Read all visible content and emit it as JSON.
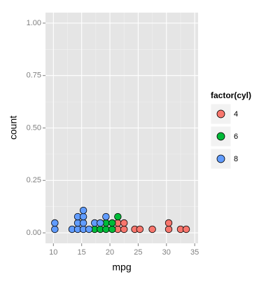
{
  "chart_data": {
    "type": "dotplot",
    "x_label": "mpg",
    "y_label": "count",
    "xlim": [
      8.6,
      35.6
    ],
    "ylim": [
      -0.05,
      1.05
    ],
    "xticks": [
      10,
      15,
      20,
      25,
      30,
      35
    ],
    "yticks": [
      {
        "value": 0,
        "label": "0.00"
      },
      {
        "value": 0.25,
        "label": "0.25"
      },
      {
        "value": 0.5,
        "label": "0.50"
      },
      {
        "value": 0.75,
        "label": "0.75"
      },
      {
        "value": 1,
        "label": "1.00"
      }
    ],
    "grid": true,
    "legend_title": "factor(cyl)",
    "legend_position": "right",
    "series": [
      {
        "name": "4",
        "color": "#f8766d",
        "x": [
          21.4,
          21.4,
          22.5,
          22.5,
          24.4,
          25.3,
          27.5,
          30.4,
          30.4,
          32.5,
          33.5
        ],
        "values": [
          0.017,
          0.047,
          0.017,
          0.047,
          0.017,
          0.017,
          0.017,
          0.017,
          0.047,
          0.017,
          0.017
        ]
      },
      {
        "name": "6",
        "color": "#00ba38",
        "x": [
          17.3,
          18.3,
          19.3,
          19.3,
          20.4,
          20.4,
          21.4
        ],
        "values": [
          0.017,
          0.017,
          0.017,
          0.047,
          0.017,
          0.047,
          0.077
        ]
      },
      {
        "name": "8",
        "color": "#619cff",
        "x": [
          10.25,
          10.25,
          13.3,
          14.3,
          14.3,
          14.3,
          15.3,
          15.3,
          15.3,
          15.3,
          16.3,
          17.3,
          18.3,
          19.3
        ],
        "values": [
          0.017,
          0.047,
          0.017,
          0.017,
          0.047,
          0.077,
          0.017,
          0.047,
          0.077,
          0.107,
          0.017,
          0.047,
          0.047,
          0.077
        ]
      }
    ]
  }
}
